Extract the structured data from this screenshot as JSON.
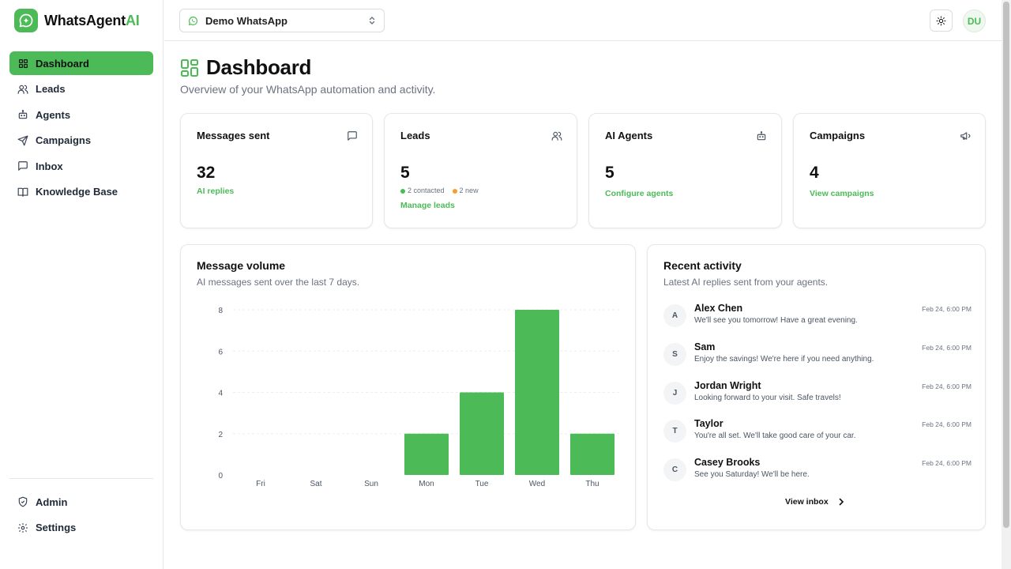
{
  "brand": {
    "name_main": "WhatsAgent",
    "name_accent": "AI",
    "accent_color": "#4cbb57"
  },
  "sidebar": {
    "items": [
      {
        "label": "Dashboard",
        "icon": "dashboard-icon",
        "active": true
      },
      {
        "label": "Leads",
        "icon": "users-icon"
      },
      {
        "label": "Agents",
        "icon": "bot-icon"
      },
      {
        "label": "Campaigns",
        "icon": "send-icon"
      },
      {
        "label": "Inbox",
        "icon": "message-square-icon"
      },
      {
        "label": "Knowledge Base",
        "icon": "book-icon"
      }
    ],
    "bottom_items": [
      {
        "label": "Admin",
        "icon": "shield-icon"
      },
      {
        "label": "Settings",
        "icon": "gear-icon"
      }
    ]
  },
  "topbar": {
    "workspace": "Demo WhatsApp",
    "avatar_initials": "DU",
    "theme_icon": "sun-icon"
  },
  "header": {
    "title": "Dashboard",
    "subtitle": "Overview of your WhatsApp automation and activity."
  },
  "stats": {
    "messages": {
      "title": "Messages sent",
      "value": "32",
      "link": "AI replies"
    },
    "leads": {
      "title": "Leads",
      "value": "5",
      "contacted": "2 contacted",
      "new": "2 new",
      "link": "Manage leads"
    },
    "agents": {
      "title": "AI Agents",
      "value": "5",
      "link": "Configure agents"
    },
    "campaigns": {
      "title": "Campaigns",
      "value": "4",
      "link": "View campaigns"
    }
  },
  "volume": {
    "title": "Message volume",
    "subtitle": "AI messages sent over the last 7 days."
  },
  "chart_data": {
    "type": "bar",
    "categories": [
      "Fri",
      "Sat",
      "Sun",
      "Mon",
      "Tue",
      "Wed",
      "Thu"
    ],
    "values": [
      0,
      0,
      0,
      2,
      4,
      8,
      2
    ],
    "yticks": [
      0,
      2,
      4,
      6,
      8
    ],
    "ylim": [
      0,
      8
    ],
    "grid": true,
    "bar_color": "#4cbb57"
  },
  "activity": {
    "title": "Recent activity",
    "subtitle": "Latest AI replies sent from your agents.",
    "items": [
      {
        "initial": "A",
        "name": "Alex Chen",
        "message": "We'll see you tomorrow! Have a great evening.",
        "time": "Feb 24, 6:00 PM"
      },
      {
        "initial": "S",
        "name": "Sam",
        "message": "Enjoy the savings! We're here if you need anything.",
        "time": "Feb 24, 6:00 PM"
      },
      {
        "initial": "J",
        "name": "Jordan Wright",
        "message": "Looking forward to your visit. Safe travels!",
        "time": "Feb 24, 6:00 PM"
      },
      {
        "initial": "T",
        "name": "Taylor",
        "message": "You're all set. We'll take good care of your car.",
        "time": "Feb 24, 6:00 PM"
      },
      {
        "initial": "C",
        "name": "Casey Brooks",
        "message": "See you Saturday! We'll be here.",
        "time": "Feb 24, 6:00 PM"
      }
    ],
    "view_all": "View inbox"
  }
}
